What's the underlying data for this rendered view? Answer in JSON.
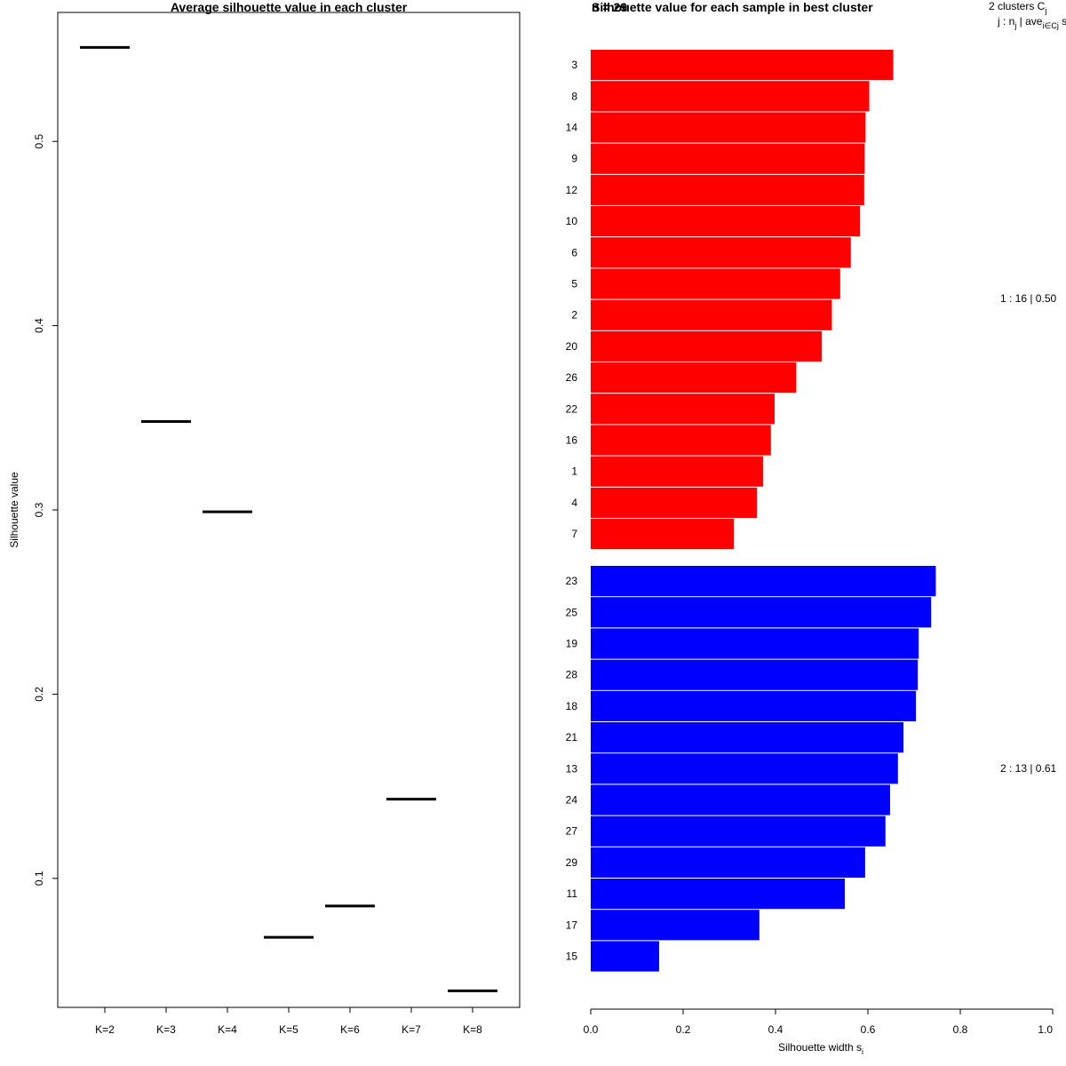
{
  "chart_data": [
    {
      "type": "line",
      "title": "Average silhouette value in each cluster",
      "xlabel": "",
      "ylabel": "Silhouette value",
      "categories": [
        "K=2",
        "K=3",
        "K=4",
        "K=5",
        "K=6",
        "K=7",
        "K=8"
      ],
      "values": [
        0.551,
        0.348,
        0.299,
        0.068,
        0.085,
        0.143,
        0.039
      ],
      "ylim": [
        0.03,
        0.57
      ],
      "yticks": [
        0.1,
        0.2,
        0.3,
        0.4,
        0.5
      ],
      "ytick_labels": [
        "0.1",
        "0.2",
        "0.3",
        "0.4",
        "0.5"
      ]
    },
    {
      "type": "bar",
      "orientation": "horizontal",
      "title": "Silhouette value for each sample in best cluster",
      "title_overlap_text": "n = 29",
      "xlabel": "Silhouette width s",
      "xlabel_sub": "i",
      "xlim": [
        0,
        1
      ],
      "xticks": [
        0.0,
        0.2,
        0.4,
        0.6,
        0.8,
        1.0
      ],
      "xtick_labels": [
        "0.0",
        "0.2",
        "0.4",
        "0.6",
        "0.8",
        "1.0"
      ],
      "legend": {
        "line1": "2  clusters  C",
        "line1_sub": "j",
        "line2": "j :  n",
        "line2_sub1": "j",
        "line2_mid": " | ave",
        "line2_sub2": "i∈Cj",
        "line2_end": "  s"
      },
      "series": [
        {
          "name": "cluster 1",
          "color": "#ff0000",
          "summary": "1 :  16  |  0.50",
          "labels": [
            "3",
            "8",
            "14",
            "9",
            "12",
            "10",
            "6",
            "5",
            "2",
            "20",
            "26",
            "22",
            "16",
            "1",
            "4",
            "7"
          ],
          "values": [
            0.655,
            0.603,
            0.595,
            0.593,
            0.592,
            0.583,
            0.563,
            0.54,
            0.522,
            0.5,
            0.445,
            0.398,
            0.39,
            0.373,
            0.36,
            0.31
          ]
        },
        {
          "name": "cluster 2",
          "color": "#0000ff",
          "summary": "2 :  13  |  0.61",
          "labels": [
            "23",
            "25",
            "19",
            "28",
            "18",
            "21",
            "13",
            "24",
            "27",
            "29",
            "11",
            "17",
            "15"
          ],
          "values": [
            0.747,
            0.737,
            0.71,
            0.708,
            0.704,
            0.677,
            0.665,
            0.648,
            0.638,
            0.594,
            0.55,
            0.365,
            0.148
          ]
        }
      ]
    }
  ]
}
